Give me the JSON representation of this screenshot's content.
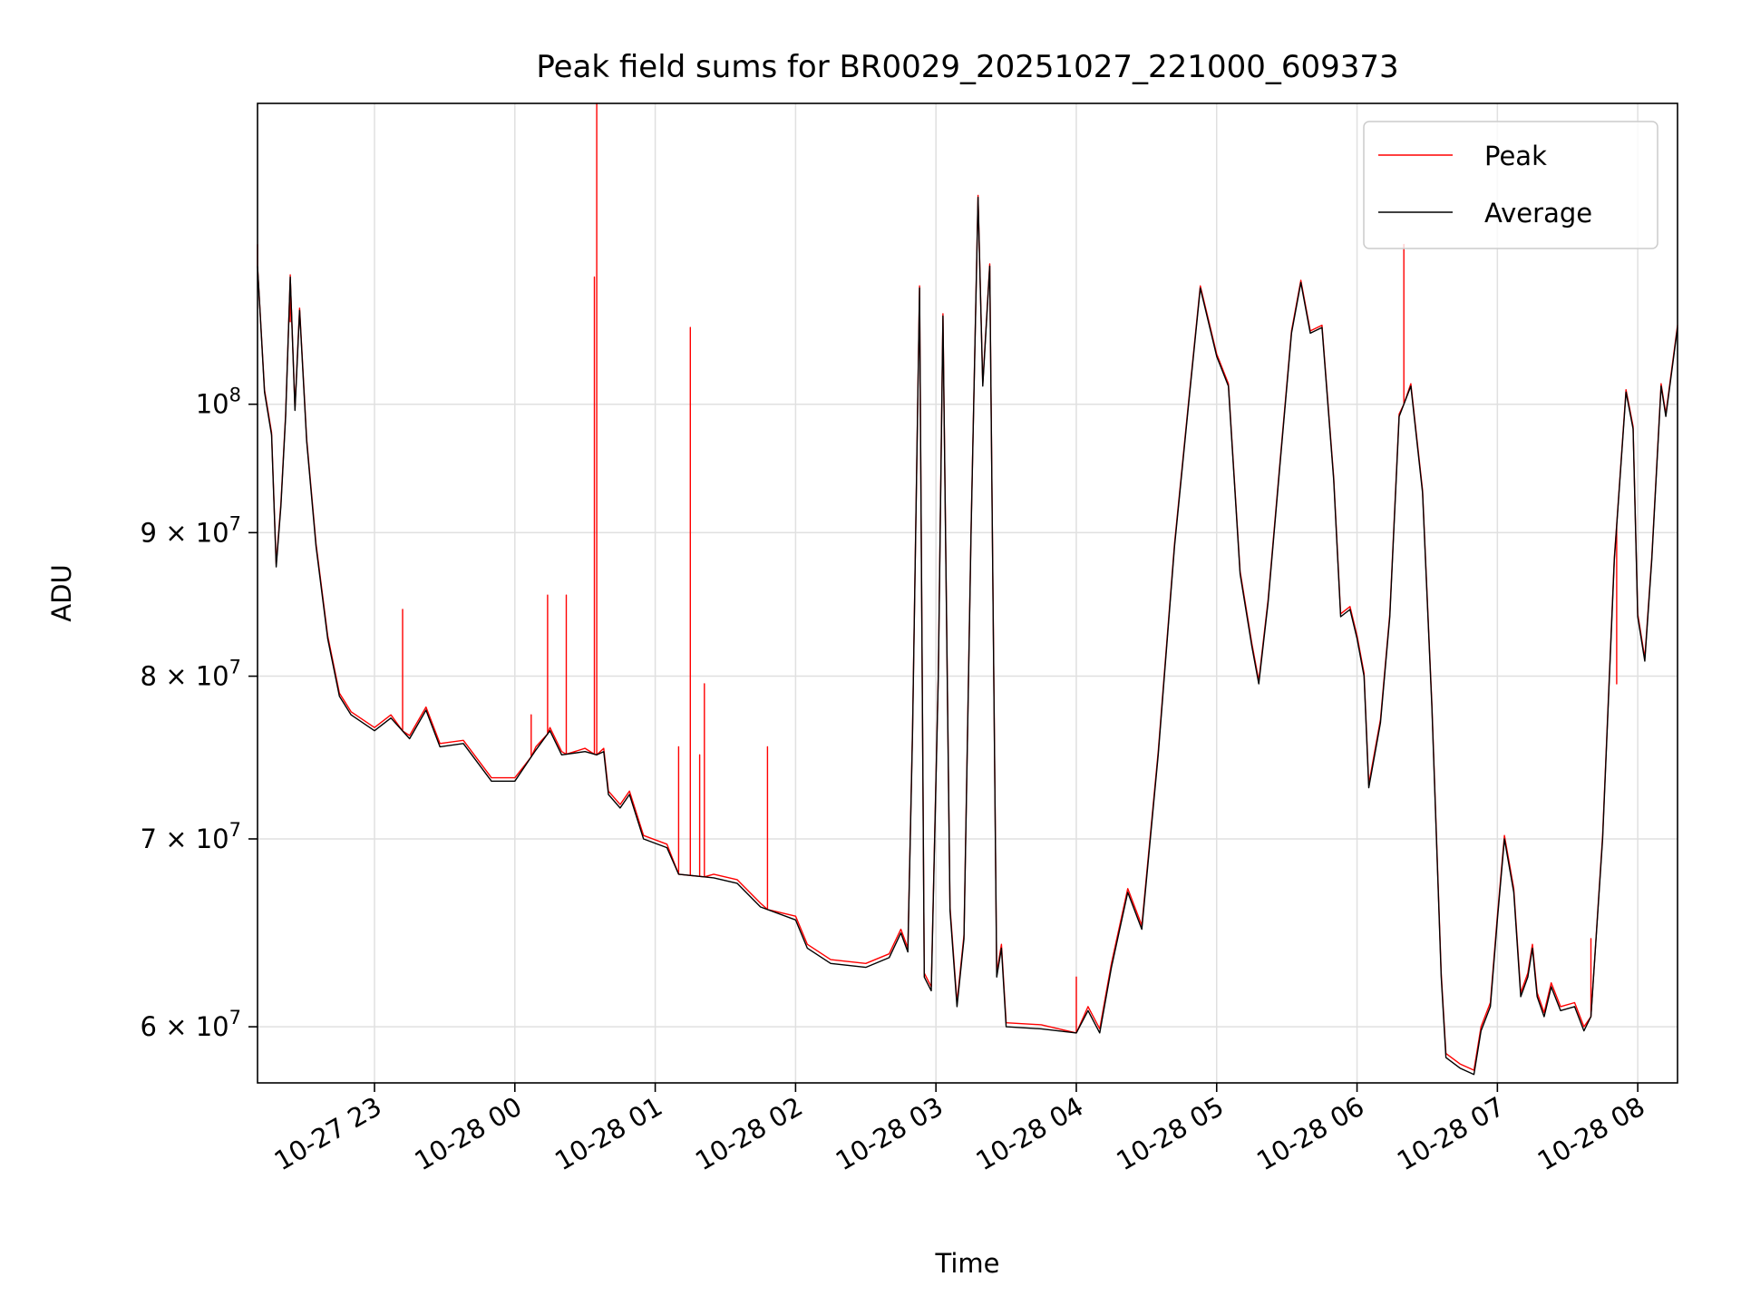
{
  "chart_data": {
    "type": "line",
    "title": "Peak field sums for BR0029_20251027_221000_609373",
    "xlabel": "Time",
    "ylabel": "ADU",
    "y_scale": "log",
    "x_range": [
      "2025-10-27 22:10",
      "2025-10-28 08:17"
    ],
    "ylim": [
      57300000,
      128000000
    ],
    "grid": true,
    "legend_position": "top-right",
    "x_ticks": [
      {
        "t": "2025-10-27 23:00",
        "label": "10-27 23"
      },
      {
        "t": "2025-10-28 00:00",
        "label": "10-28 00"
      },
      {
        "t": "2025-10-28 01:00",
        "label": "10-28 01"
      },
      {
        "t": "2025-10-28 02:00",
        "label": "10-28 02"
      },
      {
        "t": "2025-10-28 03:00",
        "label": "10-28 03"
      },
      {
        "t": "2025-10-28 04:00",
        "label": "10-28 04"
      },
      {
        "t": "2025-10-28 05:00",
        "label": "10-28 05"
      },
      {
        "t": "2025-10-28 06:00",
        "label": "10-28 06"
      },
      {
        "t": "2025-10-28 07:00",
        "label": "10-28 07"
      },
      {
        "t": "2025-10-28 08:00",
        "label": "10-28 08"
      }
    ],
    "y_ticks": [
      {
        "value": 60000000,
        "mantissa": "6",
        "exp": "7"
      },
      {
        "value": 70000000,
        "mantissa": "7",
        "exp": "7"
      },
      {
        "value": 80000000,
        "mantissa": "8",
        "exp": "7"
      },
      {
        "value": 90000000,
        "mantissa": "9",
        "exp": "7"
      },
      {
        "value": 100000000,
        "mantissa": "",
        "exp": "8"
      }
    ],
    "average": [
      [
        "2025-10-27 22:10",
        112000000
      ],
      [
        "2025-10-27 22:13",
        101000000
      ],
      [
        "2025-10-27 22:16",
        97500000
      ],
      [
        "2025-10-27 22:18",
        87500000
      ],
      [
        "2025-10-27 22:20",
        92000000
      ],
      [
        "2025-10-27 22:22",
        99000000
      ],
      [
        "2025-10-27 22:24",
        111000000
      ],
      [
        "2025-10-27 22:26",
        99500000
      ],
      [
        "2025-10-27 22:28",
        108000000
      ],
      [
        "2025-10-27 22:31",
        97000000
      ],
      [
        "2025-10-27 22:35",
        89000000
      ],
      [
        "2025-10-27 22:40",
        82500000
      ],
      [
        "2025-10-27 22:45",
        78700000
      ],
      [
        "2025-10-27 22:50",
        77500000
      ],
      [
        "2025-10-27 23:00",
        76500000
      ],
      [
        "2025-10-27 23:07",
        77300000
      ],
      [
        "2025-10-27 23:15",
        76000000
      ],
      [
        "2025-10-27 23:22",
        77800000
      ],
      [
        "2025-10-27 23:28",
        75500000
      ],
      [
        "2025-10-27 23:38",
        75700000
      ],
      [
        "2025-10-27 23:50",
        73400000
      ],
      [
        "2025-10-28 00:00",
        73400000
      ],
      [
        "2025-10-28 00:09",
        75300000
      ],
      [
        "2025-10-28 00:15",
        76500000
      ],
      [
        "2025-10-28 00:20",
        75000000
      ],
      [
        "2025-10-28 00:30",
        75200000
      ],
      [
        "2025-10-28 00:35",
        75000000
      ],
      [
        "2025-10-28 00:38",
        75200000
      ],
      [
        "2025-10-28 00:40",
        72600000
      ],
      [
        "2025-10-28 00:45",
        71800000
      ],
      [
        "2025-10-28 00:49",
        72600000
      ],
      [
        "2025-10-28 00:55",
        70000000
      ],
      [
        "2025-10-28 01:05",
        69500000
      ],
      [
        "2025-10-28 01:10",
        68000000
      ],
      [
        "2025-10-28 01:25",
        67800000
      ],
      [
        "2025-10-28 01:35",
        67500000
      ],
      [
        "2025-10-28 01:45",
        66200000
      ],
      [
        "2025-10-28 02:00",
        65500000
      ],
      [
        "2025-10-28 02:05",
        64000000
      ],
      [
        "2025-10-28 02:15",
        63200000
      ],
      [
        "2025-10-28 02:30",
        63000000
      ],
      [
        "2025-10-28 02:40",
        63500000
      ],
      [
        "2025-10-28 02:45",
        64800000
      ],
      [
        "2025-10-28 02:48",
        63800000
      ],
      [
        "2025-10-28 02:50",
        76500000
      ],
      [
        "2025-10-28 02:53",
        110000000
      ],
      [
        "2025-10-28 02:55",
        62500000
      ],
      [
        "2025-10-28 02:58",
        61800000
      ],
      [
        "2025-10-28 03:01",
        80000000
      ],
      [
        "2025-10-28 03:03",
        107500000
      ],
      [
        "2025-10-28 03:06",
        66000000
      ],
      [
        "2025-10-28 03:09",
        61000000
      ],
      [
        "2025-10-28 03:12",
        64500000
      ],
      [
        "2025-10-28 03:15",
        90000000
      ],
      [
        "2025-10-28 03:18",
        118500000
      ],
      [
        "2025-10-28 03:20",
        101500000
      ],
      [
        "2025-10-28 03:23",
        112000000
      ],
      [
        "2025-10-28 03:26",
        62500000
      ],
      [
        "2025-10-28 03:28",
        64000000
      ],
      [
        "2025-10-28 03:30",
        60000000
      ],
      [
        "2025-10-28 03:45",
        59900000
      ],
      [
        "2025-10-28 04:00",
        59700000
      ],
      [
        "2025-10-28 04:05",
        60800000
      ],
      [
        "2025-10-28 04:10",
        59700000
      ],
      [
        "2025-10-28 04:15",
        63000000
      ],
      [
        "2025-10-28 04:22",
        67000000
      ],
      [
        "2025-10-28 04:28",
        65000000
      ],
      [
        "2025-10-28 04:35",
        75000000
      ],
      [
        "2025-10-28 04:42",
        89000000
      ],
      [
        "2025-10-28 04:48",
        100000000
      ],
      [
        "2025-10-28 04:53",
        110000000
      ],
      [
        "2025-10-28 05:00",
        104000000
      ],
      [
        "2025-10-28 05:05",
        101500000
      ],
      [
        "2025-10-28 05:10",
        87000000
      ],
      [
        "2025-10-28 05:15",
        82000000
      ],
      [
        "2025-10-28 05:18",
        79500000
      ],
      [
        "2025-10-28 05:22",
        85000000
      ],
      [
        "2025-10-28 05:27",
        95000000
      ],
      [
        "2025-10-28 05:32",
        106000000
      ],
      [
        "2025-10-28 05:36",
        110500000
      ],
      [
        "2025-10-28 05:40",
        106000000
      ],
      [
        "2025-10-28 05:45",
        106500000
      ],
      [
        "2025-10-28 05:50",
        94000000
      ],
      [
        "2025-10-28 05:53",
        84000000
      ],
      [
        "2025-10-28 05:57",
        84500000
      ],
      [
        "2025-10-28 06:00",
        82500000
      ],
      [
        "2025-10-28 06:03",
        80000000
      ],
      [
        "2025-10-28 06:05",
        73000000
      ],
      [
        "2025-10-28 06:10",
        77000000
      ],
      [
        "2025-10-28 06:14",
        84000000
      ],
      [
        "2025-10-28 06:18",
        99000000
      ],
      [
        "2025-10-28 06:23",
        101500000
      ],
      [
        "2025-10-28 06:28",
        93000000
      ],
      [
        "2025-10-28 06:32",
        78000000
      ],
      [
        "2025-10-28 06:36",
        62500000
      ],
      [
        "2025-10-28 06:38",
        58500000
      ],
      [
        "2025-10-28 06:44",
        58000000
      ],
      [
        "2025-10-28 06:50",
        57700000
      ],
      [
        "2025-10-28 06:53",
        59800000
      ],
      [
        "2025-10-28 06:57",
        61000000
      ],
      [
        "2025-10-28 07:00",
        65500000
      ],
      [
        "2025-10-28 07:03",
        70000000
      ],
      [
        "2025-10-28 07:07",
        67000000
      ],
      [
        "2025-10-28 07:10",
        61500000
      ],
      [
        "2025-10-28 07:13",
        62500000
      ],
      [
        "2025-10-28 07:15",
        64000000
      ],
      [
        "2025-10-28 07:17",
        61500000
      ],
      [
        "2025-10-28 07:20",
        60500000
      ],
      [
        "2025-10-28 07:23",
        62000000
      ],
      [
        "2025-10-28 07:27",
        60800000
      ],
      [
        "2025-10-28 07:33",
        61000000
      ],
      [
        "2025-10-28 07:37",
        59800000
      ],
      [
        "2025-10-28 07:40",
        60500000
      ],
      [
        "2025-10-28 07:45",
        70000000
      ],
      [
        "2025-10-28 07:50",
        88000000
      ],
      [
        "2025-10-28 07:55",
        101000000
      ],
      [
        "2025-10-28 07:58",
        98000000
      ],
      [
        "2025-10-28 08:00",
        84000000
      ],
      [
        "2025-10-28 08:03",
        81000000
      ],
      [
        "2025-10-28 08:06",
        88000000
      ],
      [
        "2025-10-28 08:10",
        101500000
      ],
      [
        "2025-10-28 08:12",
        99000000
      ],
      [
        "2025-10-28 08:17",
        106500000
      ]
    ],
    "series": [
      {
        "name": "Peak",
        "color": "#ff0000",
        "offset_above_average": 200000,
        "spikes": [
          [
            "2025-10-27 22:10",
            114000000
          ],
          [
            "2025-10-27 22:24",
            107000000
          ],
          [
            "2025-10-27 23:12",
            84500000
          ],
          [
            "2025-10-28 00:07",
            77500000
          ],
          [
            "2025-10-28 00:14",
            85500000
          ],
          [
            "2025-10-28 00:22",
            85500000
          ],
          [
            "2025-10-28 00:34",
            111000000
          ],
          [
            "2025-10-28 00:35",
            128000000
          ],
          [
            "2025-10-28 01:10",
            75500000
          ],
          [
            "2025-10-28 01:15",
            106500000
          ],
          [
            "2025-10-28 01:19",
            75000000
          ],
          [
            "2025-10-28 01:21",
            79500000
          ],
          [
            "2025-10-28 01:48",
            75500000
          ],
          [
            "2025-10-28 04:00",
            62500000
          ],
          [
            "2025-10-28 06:20",
            114000000
          ],
          [
            "2025-10-28 07:40",
            64500000
          ],
          [
            "2025-10-28 07:51",
            79500000
          ]
        ]
      },
      {
        "name": "Average",
        "color": "#000000"
      }
    ]
  }
}
